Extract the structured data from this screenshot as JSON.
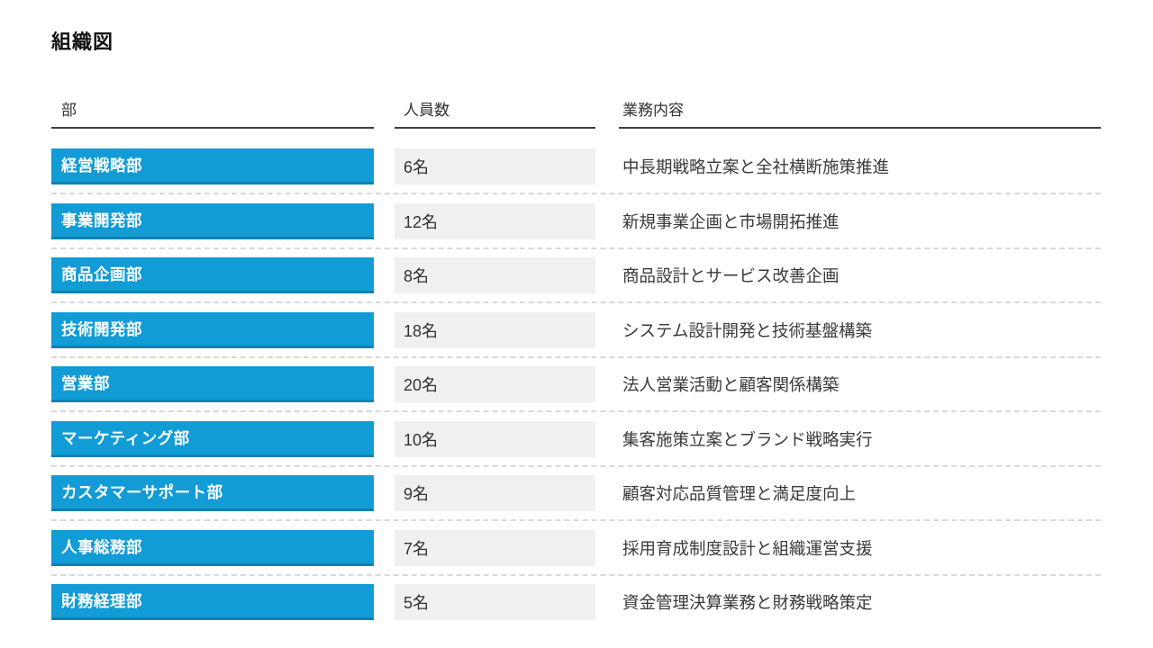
{
  "page": {
    "title": "組織図"
  },
  "colors": {
    "accent_blue": "#119CD6",
    "accent_blue_dark": "#0E81B4",
    "cell_gray": "#F0F0F0",
    "dash_gray": "#D9D9D9",
    "rule_dark": "#3D3D3D",
    "text_dark": "#333333"
  },
  "table": {
    "headers": {
      "dept": "部",
      "count": "人員数",
      "desc": "業務内容"
    },
    "rows": [
      {
        "dept": "経営戦略部",
        "count": "6名",
        "desc": "中長期戦略立案と全社横断施策推進"
      },
      {
        "dept": "事業開発部",
        "count": "12名",
        "desc": "新規事業企画と市場開拓推進"
      },
      {
        "dept": "商品企画部",
        "count": "8名",
        "desc": "商品設計とサービス改善企画"
      },
      {
        "dept": "技術開発部",
        "count": "18名",
        "desc": "システム設計開発と技術基盤構築"
      },
      {
        "dept": "営業部",
        "count": "20名",
        "desc": "法人営業活動と顧客関係構築"
      },
      {
        "dept": "マーケティング部",
        "count": "10名",
        "desc": "集客施策立案とブランド戦略実行"
      },
      {
        "dept": "カスタマーサポート部",
        "count": "9名",
        "desc": "顧客対応品質管理と満足度向上"
      },
      {
        "dept": "人事総務部",
        "count": "7名",
        "desc": "採用育成制度設計と組織運営支援"
      },
      {
        "dept": "財務経理部",
        "count": "5名",
        "desc": "資金管理決算業務と財務戦略策定"
      }
    ]
  }
}
